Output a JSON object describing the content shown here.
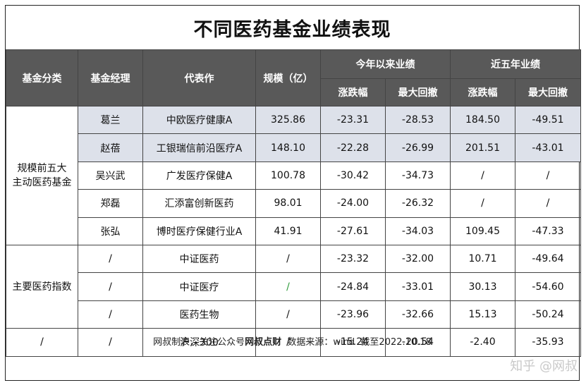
{
  "title": "不同医药基金业绩表现",
  "headers": {
    "category": "基金分类",
    "manager": "基金经理",
    "fund": "代表作",
    "size": "规模（亿）",
    "ytd_group": "今年以来业绩",
    "five_year_group": "近五年业绩",
    "change": "涨跌幅",
    "max_drawdown": "最大回撤"
  },
  "groups": {
    "top5": "规模前五大主动医药基金",
    "top5_line1": "规模前五大",
    "top5_line2": "主动医药基金",
    "index": "主要医药指数",
    "benchmark": "/"
  },
  "rows": [
    {
      "manager": "葛兰",
      "fund": "中欧医疗健康A",
      "size": "325.86",
      "ytd_change": "-23.31",
      "ytd_dd": "-28.53",
      "y5_change": "184.50",
      "y5_dd": "-49.51"
    },
    {
      "manager": "赵蓓",
      "fund": "工银瑞信前沿医疗A",
      "size": "148.10",
      "ytd_change": "-22.28",
      "ytd_dd": "-26.99",
      "y5_change": "201.51",
      "y5_dd": "-43.01"
    },
    {
      "manager": "吴兴武",
      "fund": "广发医疗保健A",
      "size": "100.78",
      "ytd_change": "-30.42",
      "ytd_dd": "-34.73",
      "y5_change": "/",
      "y5_dd": "/"
    },
    {
      "manager": "郑磊",
      "fund": "汇添富创新医药",
      "size": "98.01",
      "ytd_change": "-24.00",
      "ytd_dd": "-26.32",
      "y5_change": "/",
      "y5_dd": "/"
    },
    {
      "manager": "张弘",
      "fund": "博时医疗保健行业A",
      "size": "41.91",
      "ytd_change": "-27.61",
      "ytd_dd": "-34.03",
      "y5_change": "109.45",
      "y5_dd": "-47.33"
    },
    {
      "manager": "/",
      "fund": "中证医药",
      "size": "/",
      "ytd_change": "-23.32",
      "ytd_dd": "-32.00",
      "y5_change": "10.71",
      "y5_dd": "-49.64"
    },
    {
      "manager": "/",
      "fund": "中证医疗",
      "size": "/",
      "ytd_change": "-24.84",
      "ytd_dd": "-33.01",
      "y5_change": "30.13",
      "y5_dd": "-54.60"
    },
    {
      "manager": "/",
      "fund": "医药生物",
      "size": "/",
      "ytd_change": "-23.96",
      "ytd_dd": "-32.66",
      "y5_change": "15.13",
      "y5_dd": "-50.24"
    },
    {
      "manager": "/",
      "fund": "沪深300",
      "size": "/",
      "ytd_change": "-15.24",
      "ytd_dd": "-20.54",
      "y5_change": "-2.40",
      "y5_dd": "-35.93"
    }
  ],
  "footer": {
    "prefix": "网叔制表，关注公众号",
    "account": "网叔点财",
    "suffix": "  数据来源：wind  截至2022.10.18"
  },
  "watermark": "知乎 @网叔",
  "colors": {
    "header_bg": "#595959",
    "shaded_row": "#dde1ea",
    "green_slash": "#2e9b3a"
  }
}
